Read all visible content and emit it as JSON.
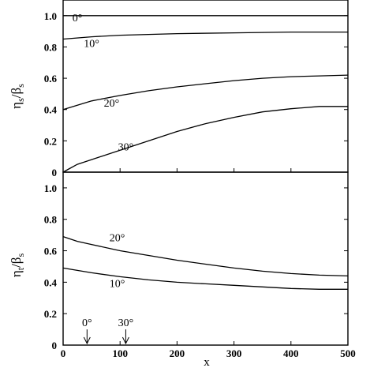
{
  "chart_data": [
    {
      "type": "line",
      "panel": "top",
      "ylabel": {
        "main": "η",
        "sub": "s",
        "sep": "/",
        "main2": "β",
        "sub2": "s"
      },
      "xlim": [
        0,
        500
      ],
      "ylim": [
        0,
        1.1
      ],
      "yticks": [
        {
          "value": 0,
          "label": "0"
        },
        {
          "value": 0.2,
          "label": "0.2"
        },
        {
          "value": 0.4,
          "label": "0.4"
        },
        {
          "value": 0.6,
          "label": "0.6"
        },
        {
          "value": 0.8,
          "label": "0.8"
        },
        {
          "value": 1.0,
          "label": "1.0"
        }
      ],
      "series": [
        {
          "name": "0°",
          "x": [
            0,
            100,
            200,
            300,
            400,
            500
          ],
          "y": [
            1.0,
            1.0,
            1.0,
            1.0,
            1.0,
            1.0
          ]
        },
        {
          "name": "10°",
          "x": [
            0,
            50,
            100,
            200,
            300,
            400,
            500
          ],
          "y": [
            0.85,
            0.865,
            0.875,
            0.885,
            0.89,
            0.895,
            0.895
          ]
        },
        {
          "name": "20°",
          "x": [
            0,
            50,
            100,
            150,
            200,
            250,
            300,
            350,
            400,
            450,
            500
          ],
          "y": [
            0.4,
            0.455,
            0.49,
            0.52,
            0.545,
            0.565,
            0.585,
            0.6,
            0.61,
            0.615,
            0.62
          ]
        },
        {
          "name": "30°",
          "x": [
            0,
            10,
            25,
            50,
            100,
            150,
            200,
            250,
            300,
            350,
            400,
            450,
            500
          ],
          "y": [
            0.0,
            0.02,
            0.05,
            0.08,
            0.14,
            0.2,
            0.26,
            0.31,
            0.35,
            0.385,
            0.405,
            0.42,
            0.42
          ]
        }
      ],
      "annotations": [
        {
          "text": "0°",
          "x": 25,
          "y": 0.965
        },
        {
          "text": "10°",
          "x": 50,
          "y": 0.8
        },
        {
          "text": "20°",
          "x": 85,
          "y": 0.42
        },
        {
          "text": "30°",
          "x": 110,
          "y": 0.14
        }
      ]
    },
    {
      "type": "line",
      "panel": "bottom",
      "xlabel": "x",
      "ylabel": {
        "main": "η",
        "sub": "t",
        "sep": "/",
        "main2": "β",
        "sub2": "s"
      },
      "xlim": [
        0,
        500
      ],
      "ylim": [
        0,
        1.1
      ],
      "xticks": [
        {
          "value": 0,
          "label": "0"
        },
        {
          "value": 100,
          "label": "100"
        },
        {
          "value": 200,
          "label": "200"
        },
        {
          "value": 300,
          "label": "300"
        },
        {
          "value": 400,
          "label": "400"
        },
        {
          "value": 500,
          "label": "500"
        }
      ],
      "yticks": [
        {
          "value": 0,
          "label": "0"
        },
        {
          "value": 0.2,
          "label": "0.2"
        },
        {
          "value": 0.4,
          "label": "0.4"
        },
        {
          "value": 0.6,
          "label": "0.6"
        },
        {
          "value": 0.8,
          "label": "0.8"
        },
        {
          "value": 1.0,
          "label": "1.0"
        }
      ],
      "series": [
        {
          "name": "20°",
          "x": [
            0,
            25,
            50,
            100,
            150,
            200,
            250,
            300,
            350,
            400,
            450,
            500
          ],
          "y": [
            0.69,
            0.66,
            0.64,
            0.6,
            0.57,
            0.54,
            0.515,
            0.49,
            0.47,
            0.455,
            0.445,
            0.44
          ]
        },
        {
          "name": "10°",
          "x": [
            0,
            25,
            50,
            100,
            150,
            200,
            250,
            300,
            350,
            400,
            450,
            500
          ],
          "y": [
            0.49,
            0.475,
            0.46,
            0.435,
            0.415,
            0.4,
            0.39,
            0.38,
            0.37,
            0.36,
            0.355,
            0.355
          ]
        }
      ],
      "annotations": [
        {
          "text": "20°",
          "x": 95,
          "y": 0.66
        },
        {
          "text": "10°",
          "x": 95,
          "y": 0.37
        }
      ],
      "markers": [
        {
          "text": "0°",
          "x": 42,
          "y": 0.12
        },
        {
          "text": "30°",
          "x": 110,
          "y": 0.12
        }
      ]
    }
  ]
}
